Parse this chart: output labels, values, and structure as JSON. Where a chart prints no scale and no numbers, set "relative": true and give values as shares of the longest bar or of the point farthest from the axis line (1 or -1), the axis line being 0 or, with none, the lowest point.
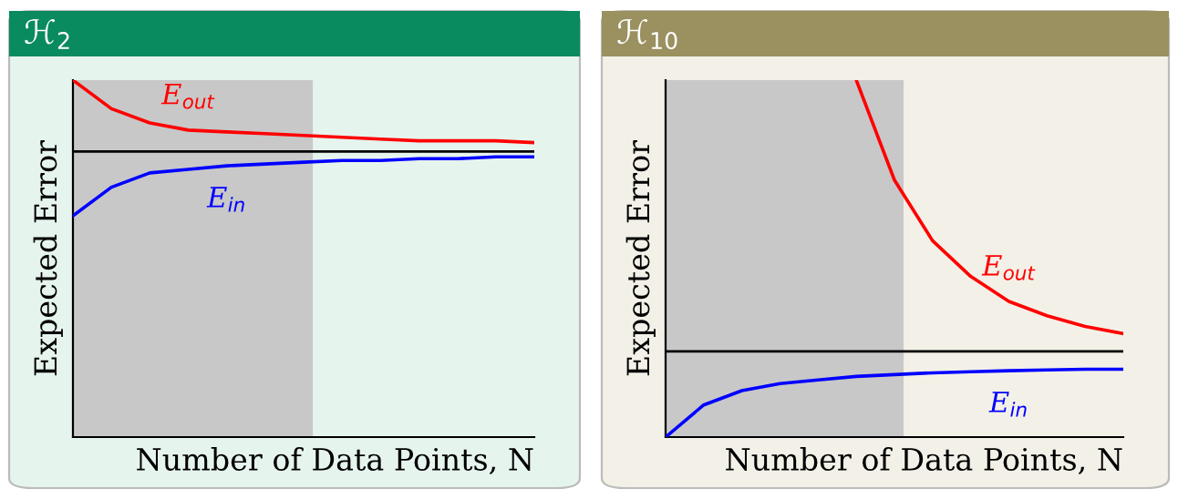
{
  "chart_data": [
    {
      "type": "line",
      "title": "ℋ$_{2}$",
      "xlabel": "Number of Data Points, N",
      "ylabel": "Expected Error",
      "relative": true,
      "tick_labels": false,
      "grid": false,
      "legend": false,
      "marker": "none",
      "line_style": "solid",
      "categories": [
        null,
        null,
        null,
        null,
        null,
        null,
        null,
        null,
        null,
        null,
        null,
        null,
        null
      ],
      "series": [
        {
          "name": "E$_{out}$",
          "color": "#ff0000",
          "values": [
            1.0,
            0.92,
            0.88,
            0.86,
            0.855,
            0.85,
            0.845,
            0.84,
            0.835,
            0.83,
            0.83,
            0.83,
            0.825
          ]
        },
        {
          "name": "E$_{in}$",
          "color": "#0000ff",
          "values": [
            0.62,
            0.7,
            0.74,
            0.75,
            0.76,
            0.765,
            0.77,
            0.775,
            0.775,
            0.78,
            0.78,
            0.785,
            0.785
          ]
        }
      ],
      "ref_lines": [
        {
          "axis": "y",
          "value": 0.8,
          "color": "#000000",
          "line_style": "solid"
        }
      ]
    },
    {
      "type": "line",
      "title": "ℋ$_{10}$",
      "xlabel": "Number of Data Points, N",
      "ylabel": "Expected Error",
      "relative": true,
      "tick_labels": false,
      "grid": false,
      "legend": false,
      "marker": "none",
      "line_style": "solid",
      "categories": [
        null,
        null,
        null,
        null,
        null,
        null,
        null,
        null,
        null,
        null,
        null,
        null,
        null
      ],
      "series": [
        {
          "name": "E$_{out}$",
          "color": "#ff0000",
          "values": [
            null,
            null,
            null,
            null,
            null,
            1.0,
            0.72,
            0.55,
            0.45,
            0.38,
            0.34,
            0.31,
            0.29
          ]
        },
        {
          "name": "E$_{in}$",
          "color": "#0000ff",
          "values": [
            0.0,
            0.09,
            0.13,
            0.15,
            0.16,
            0.17,
            0.175,
            0.18,
            0.183,
            0.186,
            0.188,
            0.19,
            0.19
          ]
        }
      ],
      "ref_lines": [
        {
          "axis": "y",
          "value": 0.24,
          "color": "#000000",
          "line_style": "solid"
        }
      ]
    }
  ]
}
